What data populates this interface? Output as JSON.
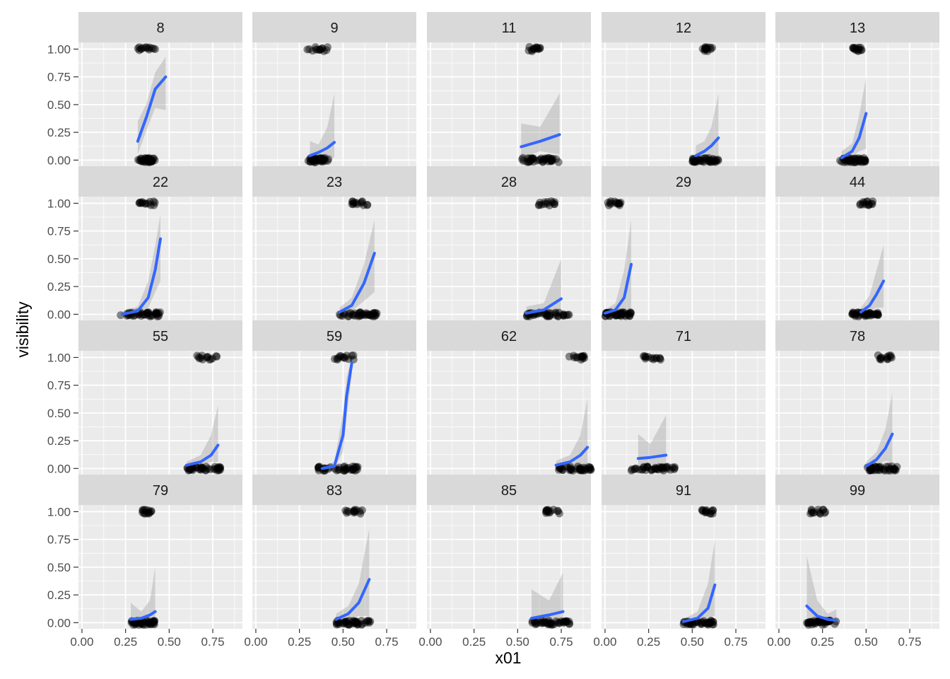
{
  "chart_data": {
    "type": "scatter",
    "facet_variable": "",
    "xlabel": "x01",
    "ylabel": "visibility",
    "xlim": [
      -0.02,
      0.92
    ],
    "ylim": [
      -0.055,
      1.06
    ],
    "x_ticks": [
      "0.00",
      "0.25",
      "0.50",
      "0.75"
    ],
    "y_ticks": [
      "0.00",
      "0.25",
      "0.50",
      "0.75",
      "1.00"
    ],
    "colors": {
      "panel_bg": "#EBEBEB",
      "strip_bg": "#D9D9D9",
      "grid": "#FFFFFF",
      "points": "#000000",
      "fit_line": "#3366FF",
      "ribbon": "#999999"
    },
    "panels": [
      {
        "label": "8",
        "x_range": [
          0.32,
          0.42
        ],
        "x1_range": [
          0.32,
          0.42
        ],
        "fit": [
          [
            0.32,
            0.17
          ],
          [
            0.37,
            0.39
          ],
          [
            0.42,
            0.64
          ],
          [
            0.48,
            0.75
          ]
        ],
        "se": [
          [
            0.32,
            0.05,
            0.35
          ],
          [
            0.37,
            0.27,
            0.51
          ],
          [
            0.42,
            0.47,
            0.79
          ],
          [
            0.48,
            0.45,
            0.93
          ]
        ]
      },
      {
        "label": "9",
        "x_range": [
          0.3,
          0.42
        ],
        "x1_range": [
          0.29,
          0.42
        ],
        "fit": [
          [
            0.31,
            0.04
          ],
          [
            0.36,
            0.07
          ],
          [
            0.41,
            0.11
          ],
          [
            0.45,
            0.16
          ]
        ],
        "se": [
          [
            0.31,
            0.0,
            0.17
          ],
          [
            0.36,
            0.02,
            0.14
          ],
          [
            0.41,
            0.03,
            0.3
          ],
          [
            0.45,
            0.02,
            0.6
          ]
        ]
      },
      {
        "label": "11",
        "x_range": [
          0.52,
          0.74
        ],
        "x1_range": [
          0.56,
          0.63
        ],
        "fit": [
          [
            0.52,
            0.12
          ],
          [
            0.63,
            0.17
          ],
          [
            0.74,
            0.23
          ]
        ],
        "se": [
          [
            0.52,
            0.02,
            0.33
          ],
          [
            0.63,
            0.08,
            0.3
          ],
          [
            0.74,
            0.05,
            0.6
          ]
        ]
      },
      {
        "label": "12",
        "x_range": [
          0.5,
          0.65
        ],
        "x1_range": [
          0.55,
          0.62
        ],
        "fit": [
          [
            0.52,
            0.04
          ],
          [
            0.57,
            0.08
          ],
          [
            0.61,
            0.13
          ],
          [
            0.65,
            0.2
          ]
        ],
        "se": [
          [
            0.52,
            0.0,
            0.13
          ],
          [
            0.57,
            0.02,
            0.17
          ],
          [
            0.61,
            0.04,
            0.3
          ],
          [
            0.65,
            0.03,
            0.6
          ]
        ]
      },
      {
        "label": "13",
        "x_range": [
          0.35,
          0.5
        ],
        "x1_range": [
          0.42,
          0.48
        ],
        "fit": [
          [
            0.36,
            0.02
          ],
          [
            0.42,
            0.08
          ],
          [
            0.46,
            0.2
          ],
          [
            0.5,
            0.42
          ]
        ],
        "se": [
          [
            0.36,
            0.0,
            0.08
          ],
          [
            0.42,
            0.03,
            0.15
          ],
          [
            0.46,
            0.08,
            0.4
          ],
          [
            0.5,
            0.1,
            0.75
          ]
        ]
      },
      {
        "label": "22",
        "x_range": [
          0.22,
          0.45
        ],
        "x1_range": [
          0.32,
          0.42
        ],
        "fit": [
          [
            0.23,
            0.0
          ],
          [
            0.32,
            0.03
          ],
          [
            0.38,
            0.15
          ],
          [
            0.42,
            0.4
          ],
          [
            0.45,
            0.68
          ]
        ],
        "se": [
          [
            0.23,
            0.0,
            0.02
          ],
          [
            0.32,
            0.01,
            0.07
          ],
          [
            0.38,
            0.06,
            0.3
          ],
          [
            0.42,
            0.2,
            0.62
          ],
          [
            0.45,
            0.3,
            0.9
          ]
        ]
      },
      {
        "label": "23",
        "x_range": [
          0.48,
          0.7
        ],
        "x1_range": [
          0.55,
          0.65
        ],
        "fit": [
          [
            0.48,
            0.02
          ],
          [
            0.55,
            0.08
          ],
          [
            0.62,
            0.28
          ],
          [
            0.68,
            0.55
          ]
        ],
        "se": [
          [
            0.48,
            0.0,
            0.06
          ],
          [
            0.55,
            0.03,
            0.15
          ],
          [
            0.62,
            0.12,
            0.45
          ],
          [
            0.68,
            0.2,
            0.85
          ]
        ]
      },
      {
        "label": "28",
        "x_range": [
          0.55,
          0.8
        ],
        "x1_range": [
          0.6,
          0.72
        ],
        "fit": [
          [
            0.55,
            0.01
          ],
          [
            0.65,
            0.04
          ],
          [
            0.75,
            0.14
          ]
        ],
        "se": [
          [
            0.55,
            0.0,
            0.07
          ],
          [
            0.65,
            0.01,
            0.1
          ],
          [
            0.75,
            0.02,
            0.5
          ]
        ]
      },
      {
        "label": "29",
        "x_range": [
          0.0,
          0.15
        ],
        "x1_range": [
          0.01,
          0.12
        ],
        "fit": [
          [
            0.0,
            0.01
          ],
          [
            0.06,
            0.04
          ],
          [
            0.11,
            0.15
          ],
          [
            0.15,
            0.45
          ]
        ],
        "se": [
          [
            0.0,
            0.0,
            0.04
          ],
          [
            0.06,
            0.01,
            0.1
          ],
          [
            0.11,
            0.04,
            0.4
          ],
          [
            0.15,
            0.05,
            0.85
          ]
        ]
      },
      {
        "label": "44",
        "x_range": [
          0.42,
          0.58
        ],
        "x1_range": [
          0.46,
          0.54
        ],
        "fit": [
          [
            0.47,
            0.02
          ],
          [
            0.52,
            0.08
          ],
          [
            0.56,
            0.18
          ],
          [
            0.6,
            0.3
          ]
        ],
        "se": [
          [
            0.47,
            0.0,
            0.06
          ],
          [
            0.52,
            0.03,
            0.17
          ],
          [
            0.56,
            0.06,
            0.4
          ],
          [
            0.6,
            0.06,
            0.62
          ]
        ]
      },
      {
        "label": "55",
        "x_range": [
          0.6,
          0.8
        ],
        "x1_range": [
          0.65,
          0.78
        ],
        "fit": [
          [
            0.6,
            0.03
          ],
          [
            0.68,
            0.06
          ],
          [
            0.74,
            0.12
          ],
          [
            0.78,
            0.21
          ]
        ],
        "se": [
          [
            0.6,
            0.01,
            0.06
          ],
          [
            0.68,
            0.03,
            0.12
          ],
          [
            0.74,
            0.06,
            0.3
          ],
          [
            0.78,
            0.06,
            0.57
          ]
        ]
      },
      {
        "label": "59",
        "x_range": [
          0.35,
          0.6
        ],
        "x1_range": [
          0.45,
          0.58
        ],
        "fit": [
          [
            0.38,
            0.0
          ],
          [
            0.45,
            0.02
          ],
          [
            0.5,
            0.3
          ],
          [
            0.52,
            0.65
          ],
          [
            0.55,
            0.95
          ]
        ],
        "se": [
          [
            0.38,
            0.0,
            0.02
          ],
          [
            0.45,
            0.0,
            0.06
          ],
          [
            0.5,
            0.15,
            0.5
          ],
          [
            0.52,
            0.45,
            0.82
          ],
          [
            0.55,
            0.85,
            1.0
          ]
        ]
      },
      {
        "label": "62",
        "x_range": [
          0.72,
          0.92
        ],
        "x1_range": [
          0.78,
          0.9
        ],
        "fit": [
          [
            0.72,
            0.03
          ],
          [
            0.8,
            0.06
          ],
          [
            0.86,
            0.12
          ],
          [
            0.9,
            0.19
          ]
        ],
        "se": [
          [
            0.72,
            0.0,
            0.07
          ],
          [
            0.8,
            0.02,
            0.12
          ],
          [
            0.86,
            0.04,
            0.3
          ],
          [
            0.9,
            0.02,
            0.63
          ]
        ]
      },
      {
        "label": "71",
        "x_range": [
          0.15,
          0.4
        ],
        "x1_range": [
          0.2,
          0.32
        ],
        "fit": [
          [
            0.19,
            0.09
          ],
          [
            0.26,
            0.1
          ],
          [
            0.35,
            0.12
          ]
        ],
        "se": [
          [
            0.19,
            0.0,
            0.31
          ],
          [
            0.26,
            0.04,
            0.22
          ],
          [
            0.35,
            0.0,
            0.48
          ]
        ]
      },
      {
        "label": "78",
        "x_range": [
          0.5,
          0.68
        ],
        "x1_range": [
          0.55,
          0.66
        ],
        "fit": [
          [
            0.5,
            0.02
          ],
          [
            0.56,
            0.08
          ],
          [
            0.61,
            0.18
          ],
          [
            0.65,
            0.31
          ]
        ],
        "se": [
          [
            0.5,
            0.0,
            0.06
          ],
          [
            0.56,
            0.03,
            0.15
          ],
          [
            0.61,
            0.07,
            0.35
          ],
          [
            0.65,
            0.05,
            0.68
          ]
        ]
      },
      {
        "label": "79",
        "x_range": [
          0.28,
          0.42
        ],
        "x1_range": [
          0.34,
          0.4
        ],
        "fit": [
          [
            0.28,
            0.03
          ],
          [
            0.34,
            0.04
          ],
          [
            0.39,
            0.07
          ],
          [
            0.42,
            0.1
          ]
        ],
        "se": [
          [
            0.28,
            0.0,
            0.18
          ],
          [
            0.34,
            0.01,
            0.1
          ],
          [
            0.39,
            0.01,
            0.2
          ],
          [
            0.42,
            0.0,
            0.5
          ]
        ]
      },
      {
        "label": "83",
        "x_range": [
          0.46,
          0.66
        ],
        "x1_range": [
          0.5,
          0.62
        ],
        "fit": [
          [
            0.46,
            0.03
          ],
          [
            0.53,
            0.08
          ],
          [
            0.59,
            0.18
          ],
          [
            0.65,
            0.39
          ]
        ],
        "se": [
          [
            0.46,
            0.0,
            0.08
          ],
          [
            0.53,
            0.03,
            0.15
          ],
          [
            0.59,
            0.06,
            0.35
          ],
          [
            0.65,
            0.06,
            0.85
          ]
        ]
      },
      {
        "label": "85",
        "x_range": [
          0.58,
          0.8
        ],
        "x1_range": [
          0.66,
          0.74
        ],
        "fit": [
          [
            0.58,
            0.04
          ],
          [
            0.68,
            0.07
          ],
          [
            0.76,
            0.1
          ]
        ],
        "se": [
          [
            0.58,
            0.0,
            0.3
          ],
          [
            0.68,
            0.02,
            0.2
          ],
          [
            0.76,
            0.0,
            0.45
          ]
        ]
      },
      {
        "label": "91",
        "x_range": [
          0.45,
          0.64
        ],
        "x1_range": [
          0.55,
          0.62
        ],
        "fit": [
          [
            0.45,
            0.01
          ],
          [
            0.53,
            0.04
          ],
          [
            0.59,
            0.13
          ],
          [
            0.63,
            0.34
          ]
        ],
        "se": [
          [
            0.45,
            0.0,
            0.03
          ],
          [
            0.53,
            0.01,
            0.1
          ],
          [
            0.59,
            0.05,
            0.35
          ],
          [
            0.63,
            0.06,
            0.75
          ]
        ]
      },
      {
        "label": "99",
        "x_range": [
          0.16,
          0.33
        ],
        "x1_range": [
          0.18,
          0.28
        ],
        "fit": [
          [
            0.16,
            0.15
          ],
          [
            0.22,
            0.06
          ],
          [
            0.28,
            0.03
          ],
          [
            0.33,
            0.02
          ]
        ],
        "se": [
          [
            0.16,
            0.0,
            0.6
          ],
          [
            0.22,
            0.01,
            0.2
          ],
          [
            0.28,
            0.0,
            0.08
          ],
          [
            0.33,
            0.0,
            0.12
          ]
        ]
      }
    ]
  }
}
